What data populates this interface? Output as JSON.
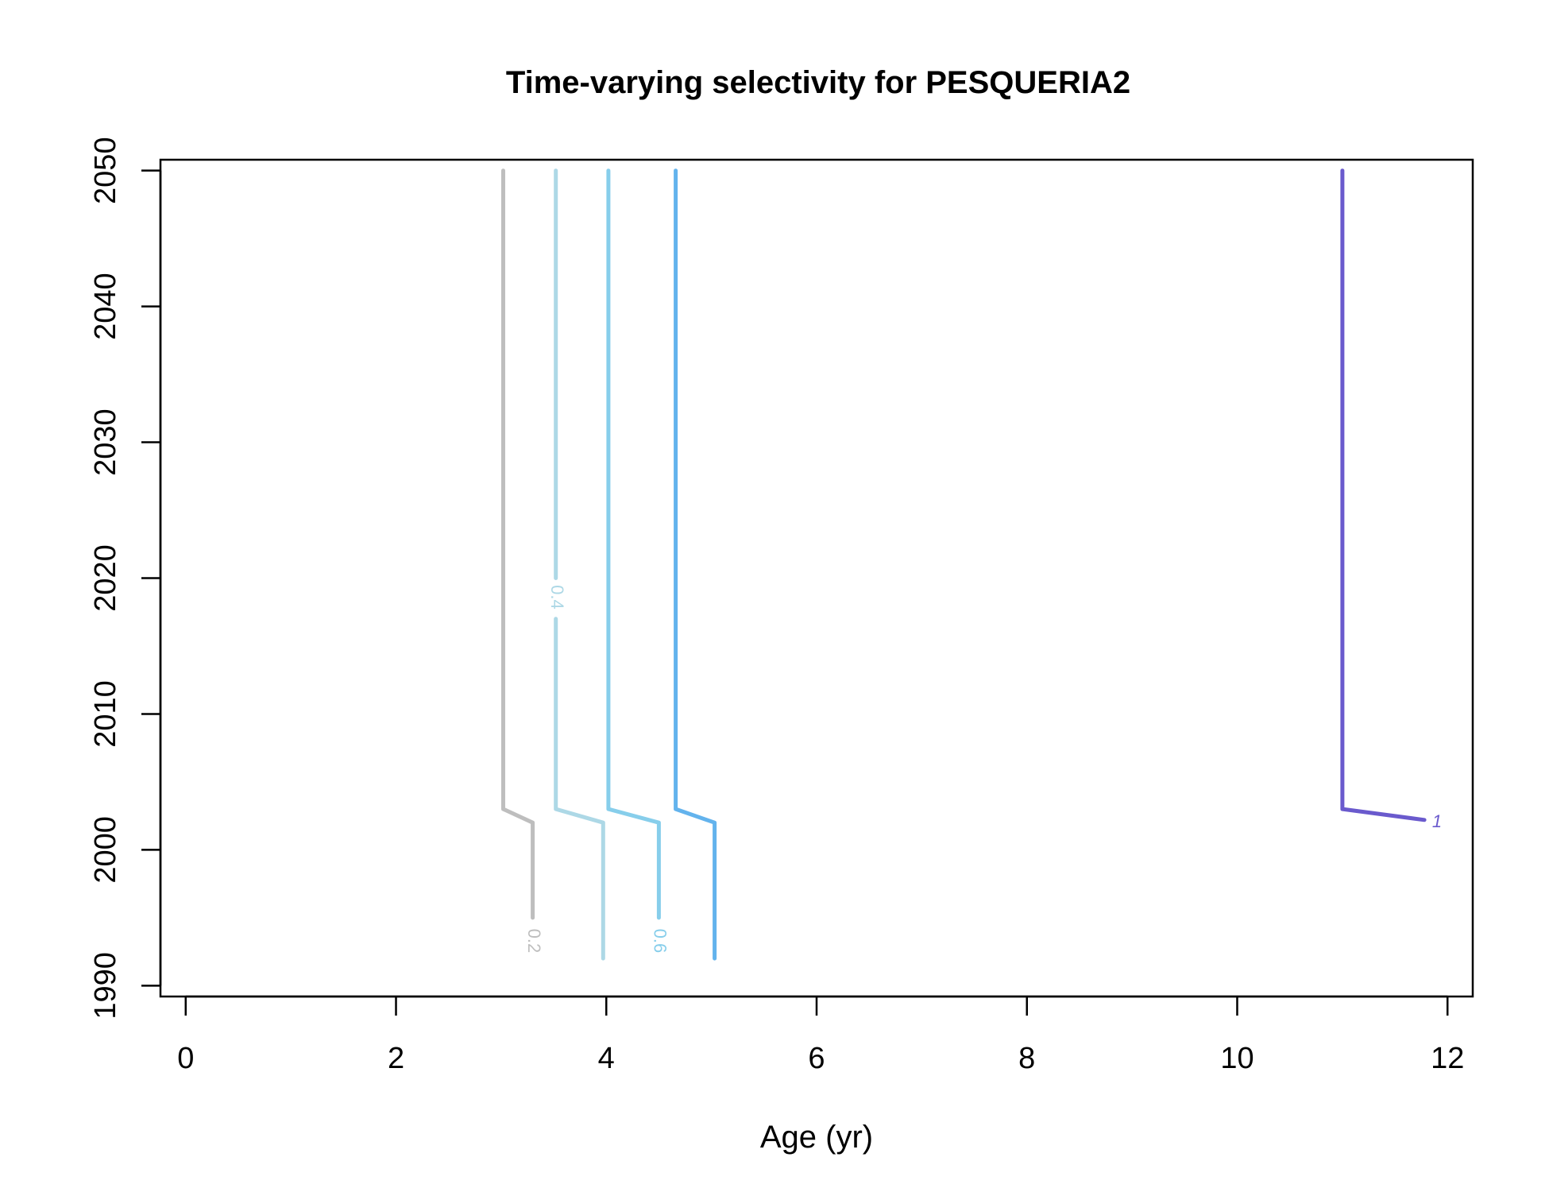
{
  "chart_data": {
    "type": "line",
    "title": "Time-varying selectivity for PESQUERIA2",
    "xlabel": "Age (yr)",
    "ylabel": "",
    "xlim": [
      -0.24,
      12.24
    ],
    "ylim": [
      1989.2,
      2050.8
    ],
    "xticks": [
      0,
      2,
      4,
      6,
      8,
      10,
      12
    ],
    "yticks": [
      1990,
      2000,
      2010,
      2020,
      2030,
      2040,
      2050
    ],
    "grid": false,
    "legend": "none",
    "contours": [
      {
        "level_label": "0.2",
        "color": "#bebebe",
        "points": [
          [
            3.02,
            2050
          ],
          [
            3.02,
            2003
          ],
          [
            3.3,
            2002
          ],
          [
            3.3,
            1995
          ]
        ],
        "label_at": [
          3.3,
          1993.3
        ],
        "label_rotation": 90
      },
      {
        "level_label": "0.4",
        "color": "#add8e6",
        "points": [
          [
            3.52,
            2050
          ],
          [
            3.52,
            2020
          ],
          [
            3.52,
            2017
          ],
          [
            3.52,
            2003
          ],
          [
            3.97,
            2002
          ],
          [
            3.97,
            1992
          ]
        ],
        "gap": [
          2020,
          2017
        ],
        "label_at": [
          3.52,
          2018.6
        ],
        "label_rotation": 90
      },
      {
        "level_label": "",
        "color": "#87ceeb",
        "points": [
          [
            4.02,
            2050
          ],
          [
            4.02,
            2003
          ],
          [
            4.5,
            2002
          ],
          [
            4.5,
            1995
          ]
        ],
        "label_at": [
          4.5,
          1993.3
        ],
        "label_rotation": 90,
        "tail_label": "0.6"
      },
      {
        "level_label": "",
        "color": "#63b3ed",
        "points": [
          [
            4.66,
            2050
          ],
          [
            4.66,
            2003
          ],
          [
            5.03,
            2002
          ],
          [
            5.03,
            1992
          ]
        ]
      },
      {
        "level_label": "1",
        "color": "#6a5acd",
        "points": [
          [
            11.0,
            2050
          ],
          [
            11.0,
            2003
          ],
          [
            11.78,
            2002.2
          ]
        ],
        "label_at": [
          11.9,
          2002
        ],
        "label_rotation": 0
      }
    ]
  }
}
